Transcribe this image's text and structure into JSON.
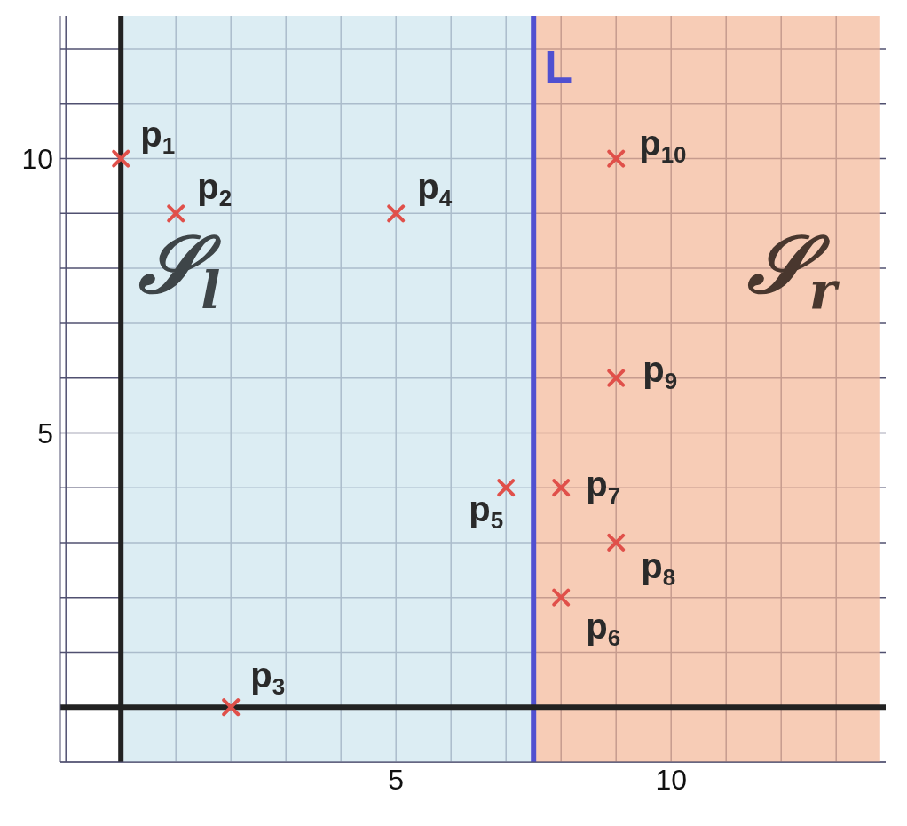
{
  "chart_data": {
    "type": "scatter",
    "x": [
      0,
      1,
      2,
      5,
      7,
      8,
      8,
      9,
      9,
      9
    ],
    "values": [
      10,
      9,
      0,
      9,
      4,
      2,
      4,
      3,
      6,
      10
    ],
    "color": "#e0504a",
    "marker": "cross",
    "xlim": [
      -1.1,
      13.9
    ],
    "ylim": [
      -1,
      12.6
    ],
    "xticks": [
      {
        "value": -1,
        "label": null
      },
      {
        "value": 1,
        "label": null
      },
      {
        "value": 2,
        "label": null
      },
      {
        "value": 3,
        "label": null
      },
      {
        "value": 4,
        "label": null
      },
      5,
      {
        "value": 6,
        "label": null
      },
      {
        "value": 7,
        "label": null
      },
      {
        "value": 8,
        "label": null
      },
      {
        "value": 9,
        "label": null
      },
      10,
      {
        "value": 11,
        "label": null
      },
      {
        "value": 12,
        "label": null
      },
      {
        "value": 13,
        "label": null
      }
    ],
    "yticks": [
      {
        "value": -1,
        "label": null
      },
      {
        "value": 1,
        "label": null
      },
      {
        "value": 2,
        "label": null
      },
      {
        "value": 3,
        "label": null
      },
      {
        "value": 4,
        "label": null
      },
      5,
      {
        "value": 6,
        "label": null
      },
      {
        "value": 7,
        "label": null
      },
      {
        "value": 8,
        "label": null
      },
      {
        "value": 9,
        "label": null
      },
      10,
      {
        "value": 11,
        "label": null
      },
      {
        "value": 12,
        "label": null
      }
    ],
    "grid": true,
    "bands": [
      {
        "axis": "x",
        "from": 0,
        "to": 7.5,
        "label": "𝒮$_{l}$",
        "color": "#cfe6ef"
      },
      {
        "axis": "x",
        "from": 7.5,
        "to": 13.8,
        "label": "𝒮$_{r}$",
        "color": "#f4b89a"
      }
    ],
    "ref_lines": [
      {
        "axis": "x",
        "value": 7.5,
        "label": "L",
        "color": "#5050d0"
      },
      {
        "axis": "x",
        "value": 0,
        "color": "#222222"
      },
      {
        "axis": "y",
        "value": 0,
        "color": "#222222"
      }
    ],
    "annotations": [
      {
        "text": "p$_{1}$",
        "x": 0,
        "y": 10
      },
      {
        "text": "p$_{2}$",
        "x": 1,
        "y": 9
      },
      {
        "text": "p$_{3}$",
        "x": 2,
        "y": 0
      },
      {
        "text": "p$_{4}$",
        "x": 5,
        "y": 9
      },
      {
        "text": "p$_{5}$",
        "x": 7,
        "y": 4
      },
      {
        "text": "p$_{6}$",
        "x": 8,
        "y": 2
      },
      {
        "text": "p$_{7}$",
        "x": 8,
        "y": 4
      },
      {
        "text": "p$_{8}$",
        "x": 9,
        "y": 3
      },
      {
        "text": "p$_{9}$",
        "x": 9,
        "y": 6
      },
      {
        "text": "p$_{10}$",
        "x": 9,
        "y": 10
      }
    ]
  }
}
